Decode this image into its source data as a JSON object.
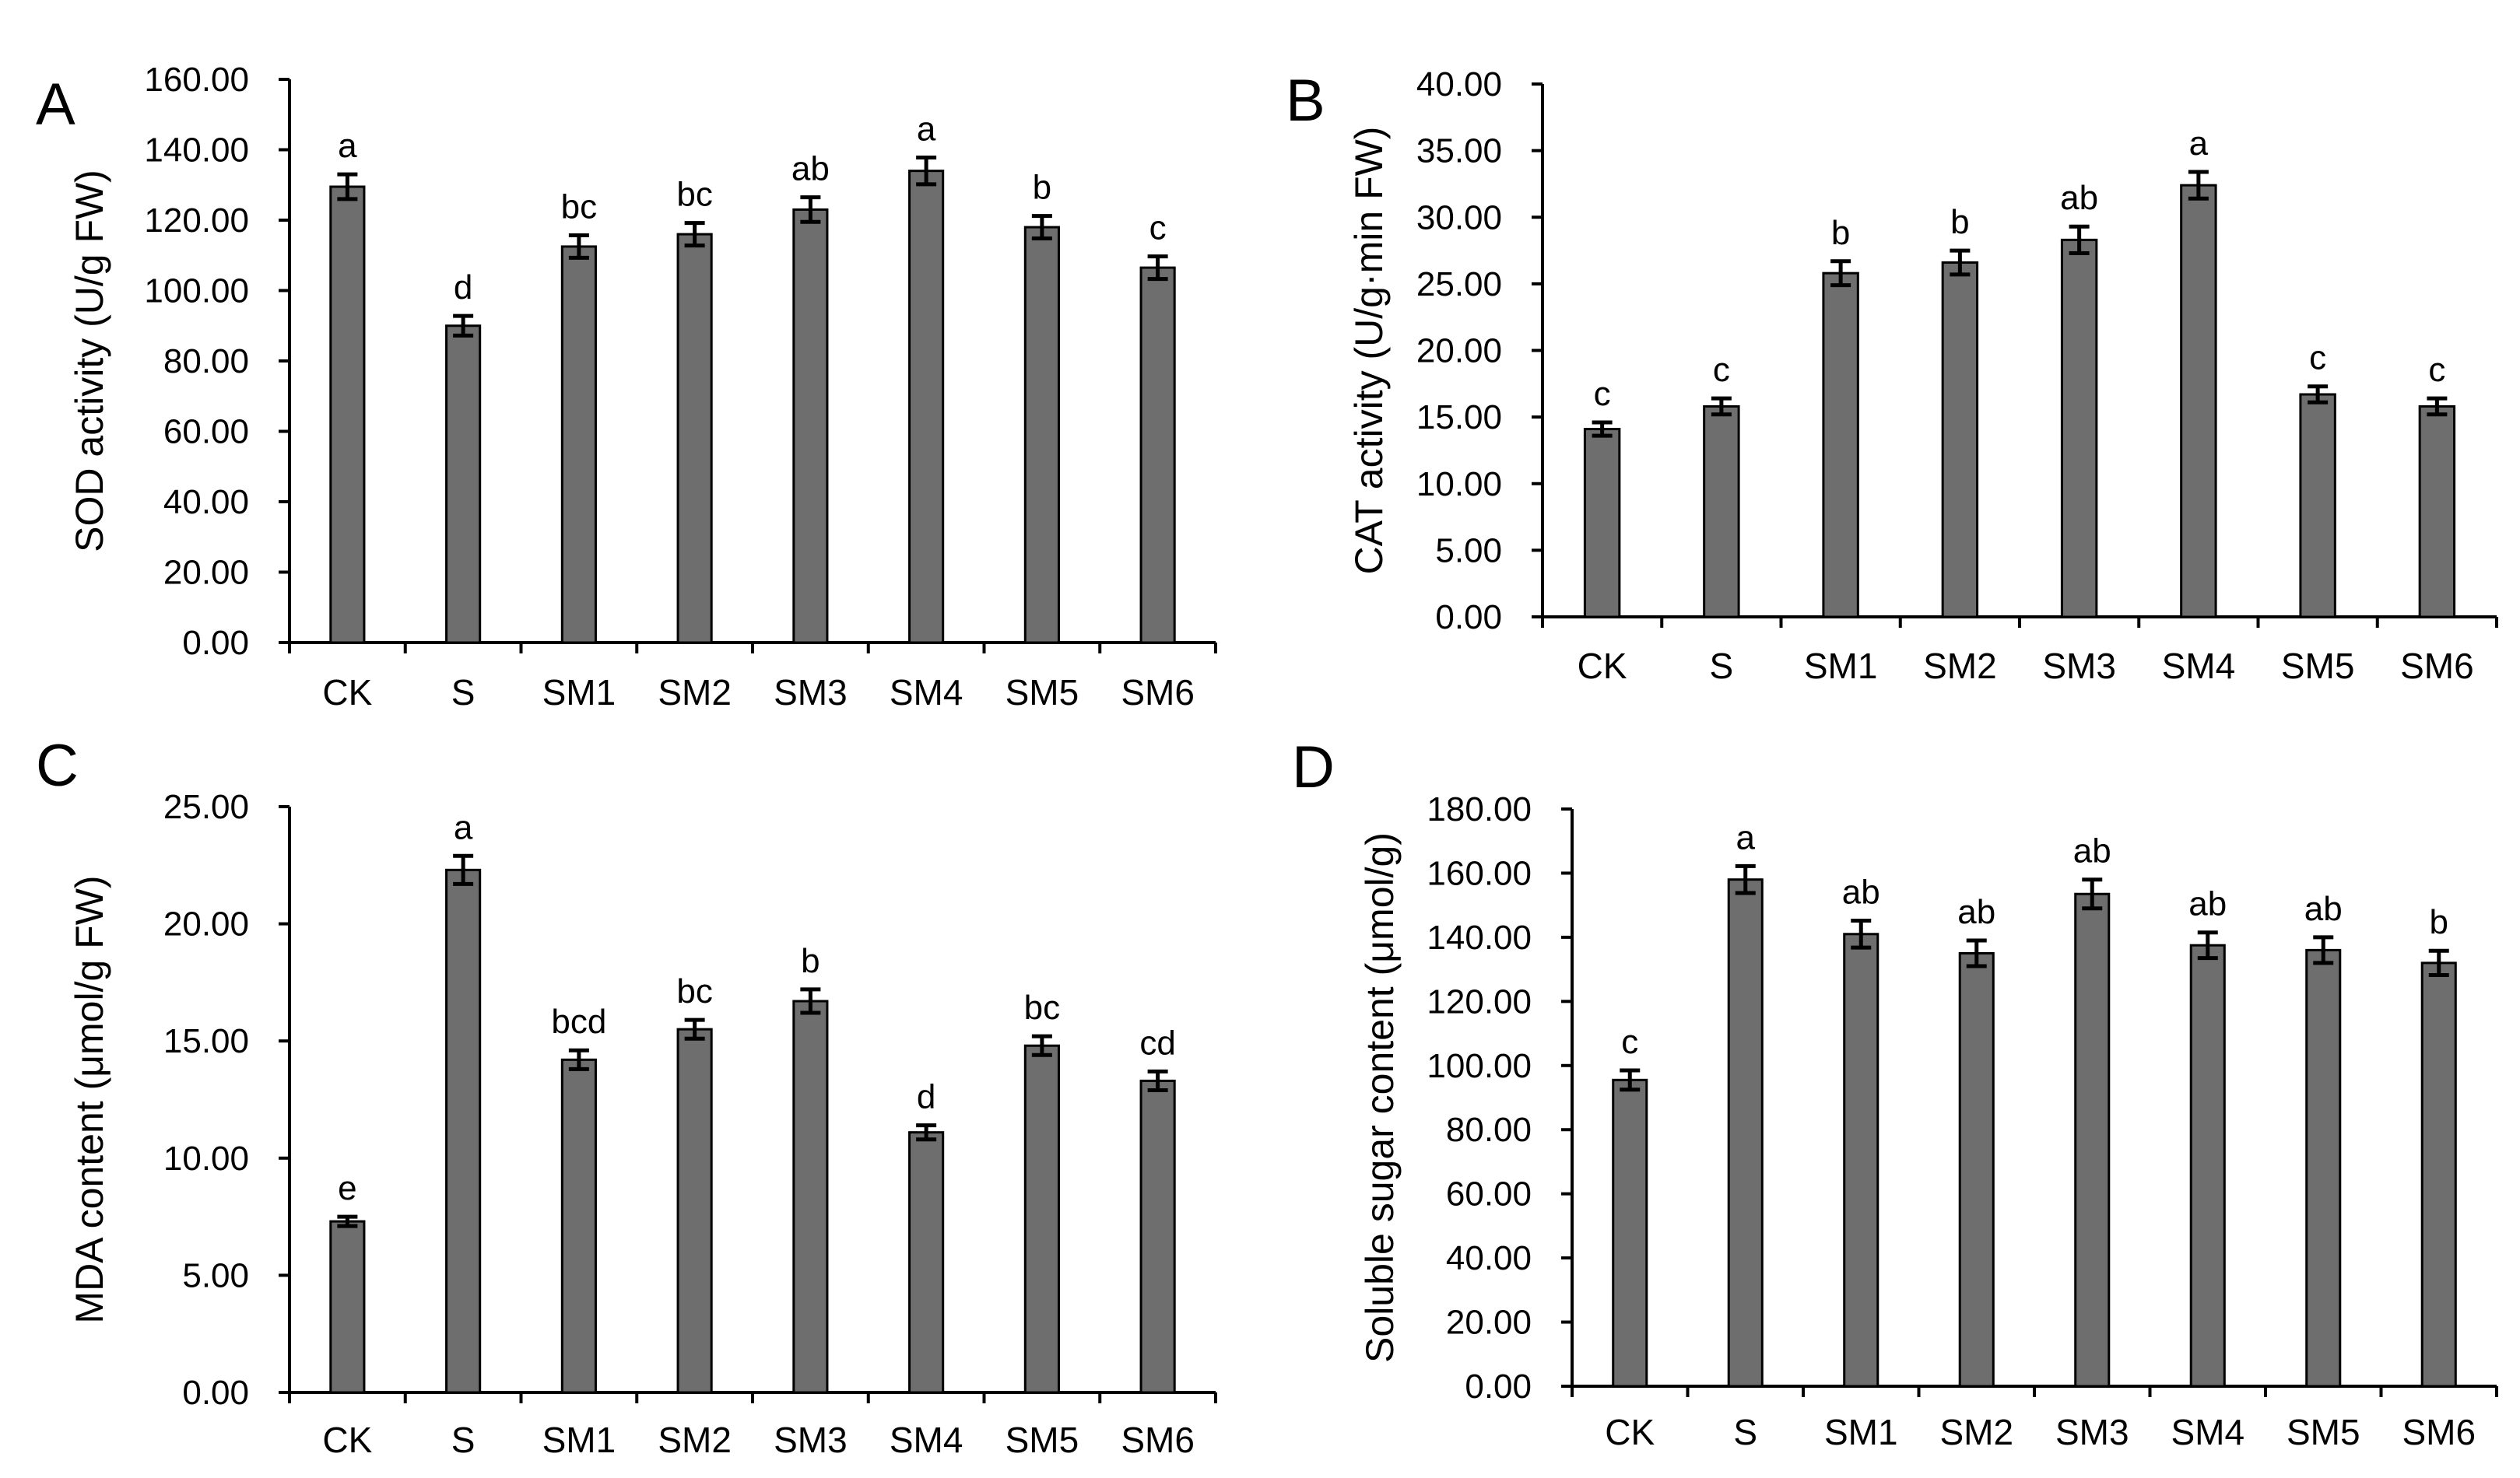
{
  "figure": {
    "background": "#ffffff",
    "bar_color": "#6e6e6e",
    "axis_color": "#000000"
  },
  "chart_data": [
    {
      "panel": "A",
      "type": "bar",
      "ylabel": "SOD activity (U/g FW)",
      "categories": [
        "CK",
        "S",
        "SM1",
        "SM2",
        "SM3",
        "SM4",
        "SM5",
        "SM6"
      ],
      "values": [
        129.5,
        90.0,
        112.5,
        116.0,
        123.0,
        134.0,
        118.0,
        106.5
      ],
      "errors": [
        3.5,
        2.8,
        3.2,
        3.2,
        3.5,
        3.8,
        3.2,
        3.2
      ],
      "letters": [
        "a",
        "d",
        "bc",
        "bc",
        "ab",
        "a",
        "b",
        "c"
      ],
      "ylim": [
        0,
        160
      ],
      "yticks": [
        "0.00",
        "20.00",
        "40.00",
        "60.00",
        "80.00",
        "100.00",
        "120.00",
        "140.00",
        "160.00"
      ]
    },
    {
      "panel": "B",
      "type": "bar",
      "ylabel": "CAT activity (U/g·min FW)",
      "categories": [
        "CK",
        "S",
        "SM1",
        "SM2",
        "SM3",
        "SM4",
        "SM5",
        "SM6"
      ],
      "values": [
        14.1,
        15.8,
        25.8,
        26.6,
        28.3,
        32.4,
        16.7,
        15.8
      ],
      "errors": [
        0.5,
        0.6,
        0.9,
        0.9,
        1.0,
        1.0,
        0.6,
        0.6
      ],
      "letters": [
        "c",
        "c",
        "b",
        "b",
        "ab",
        "a",
        "c",
        "c"
      ],
      "ylim": [
        0,
        40
      ],
      "yticks": [
        "0.00",
        "5.00",
        "10.00",
        "15.00",
        "20.00",
        "25.00",
        "30.00",
        "35.00",
        "40.00"
      ]
    },
    {
      "panel": "C",
      "type": "bar",
      "ylabel": "MDA content (μmol/g FW)",
      "categories": [
        "CK",
        "S",
        "SM1",
        "SM2",
        "SM3",
        "SM4",
        "SM5",
        "SM6"
      ],
      "values": [
        7.3,
        22.3,
        14.2,
        15.5,
        16.7,
        11.1,
        14.8,
        13.3
      ],
      "errors": [
        0.2,
        0.6,
        0.4,
        0.4,
        0.5,
        0.3,
        0.4,
        0.4
      ],
      "letters": [
        "e",
        "a",
        "bcd",
        "bc",
        "b",
        "d",
        "bc",
        "cd"
      ],
      "ylim": [
        0,
        25
      ],
      "yticks": [
        "0.00",
        "5.00",
        "10.00",
        "15.00",
        "20.00",
        "25.00"
      ]
    },
    {
      "panel": "D",
      "type": "bar",
      "ylabel": "Soluble sugar content (μmol/g)",
      "categories": [
        "CK",
        "S",
        "SM1",
        "SM2",
        "SM3",
        "SM4",
        "SM5",
        "SM6"
      ],
      "values": [
        95.5,
        158.0,
        141.0,
        135.0,
        153.5,
        137.5,
        136.0,
        132.0
      ],
      "errors": [
        3.0,
        4.2,
        4.2,
        4.0,
        4.5,
        4.0,
        4.0,
        3.8
      ],
      "letters": [
        "c",
        "a",
        "ab",
        "ab",
        "ab",
        "ab",
        "ab",
        "b"
      ],
      "ylim": [
        0,
        180
      ],
      "yticks": [
        "0.00",
        "20.00",
        "40.00",
        "60.00",
        "80.00",
        "100.00",
        "120.00",
        "140.00",
        "160.00",
        "180.00"
      ]
    }
  ]
}
